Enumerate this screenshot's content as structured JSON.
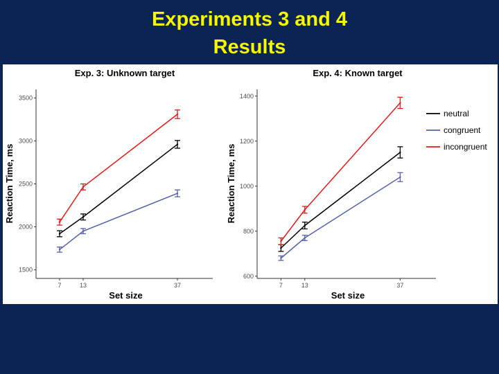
{
  "slide": {
    "title_line1": "Experiments 3 and 4",
    "title_line2": "Results"
  },
  "colors": {
    "background": "#0c2454",
    "title": "#f7f700",
    "neutral": "#000000",
    "congruent": "#5461a8",
    "incongruent": "#e31a1c"
  },
  "legend": {
    "placement": "right",
    "entries": [
      "neutral",
      "congruent",
      "incongruent"
    ]
  },
  "chart_data": [
    {
      "type": "line",
      "title": "Exp. 3: Unknown target",
      "xlabel": "Set size",
      "ylabel": "Reaction Time, ms",
      "x": [
        7,
        13,
        37
      ],
      "x_ticks": [
        "7",
        "13",
        "37"
      ],
      "xlim": [
        1,
        46
      ],
      "ylim": [
        1400,
        3600
      ],
      "y_ticks": [
        1500,
        2000,
        2500,
        3000,
        3500
      ],
      "grid": false,
      "series": [
        {
          "name": "neutral",
          "values": [
            1920,
            2115,
            2960
          ],
          "errors": [
            35,
            35,
            45
          ]
        },
        {
          "name": "congruent",
          "values": [
            1735,
            1950,
            2390
          ],
          "errors": [
            30,
            30,
            40
          ]
        },
        {
          "name": "incongruent",
          "values": [
            2055,
            2465,
            3310
          ],
          "errors": [
            35,
            35,
            50
          ]
        }
      ]
    },
    {
      "type": "line",
      "title": "Exp. 4: Known target",
      "xlabel": "Set size",
      "ylabel": "Reaction Time, ms",
      "x": [
        7,
        13,
        37
      ],
      "x_ticks": [
        "7",
        "13",
        "37"
      ],
      "xlim": [
        1,
        46
      ],
      "ylim": [
        590,
        1430
      ],
      "y_ticks": [
        600,
        800,
        1000,
        1200,
        1400
      ],
      "grid": false,
      "series": [
        {
          "name": "neutral",
          "values": [
            725,
            825,
            1150
          ],
          "errors": [
            15,
            15,
            25
          ]
        },
        {
          "name": "congruent",
          "values": [
            680,
            770,
            1040
          ],
          "errors": [
            10,
            12,
            20
          ]
        },
        {
          "name": "incongruent",
          "values": [
            755,
            895,
            1370
          ],
          "errors": [
            15,
            15,
            25
          ]
        }
      ]
    }
  ]
}
